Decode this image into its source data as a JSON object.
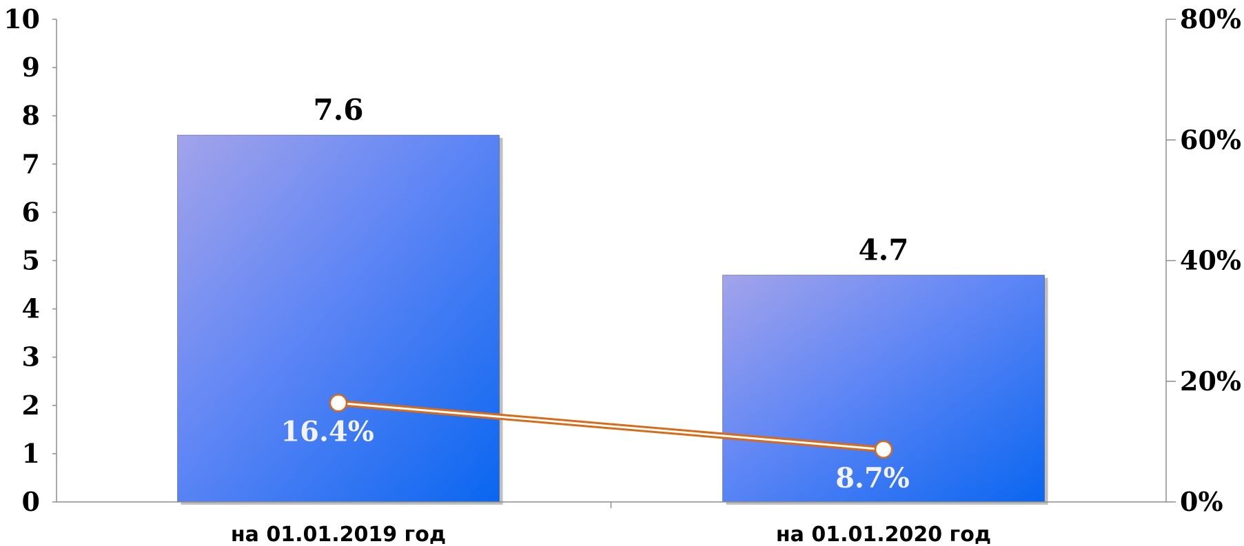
{
  "chart_data": {
    "type": "bar",
    "categories": [
      "на 01.01.2019 год",
      "на 01.01.2020 год"
    ],
    "series": [
      {
        "type": "bar",
        "axis": "left",
        "values": [
          7.6,
          4.7
        ],
        "labels": [
          "7.6",
          "4.7"
        ]
      },
      {
        "type": "line",
        "axis": "right",
        "values": [
          16.4,
          8.7
        ],
        "labels": [
          "16.4%",
          "8.7%"
        ]
      }
    ],
    "y_left": {
      "range": [
        0,
        10
      ],
      "ticks": [
        0,
        1,
        2,
        3,
        4,
        5,
        6,
        7,
        8,
        9,
        10
      ],
      "tick_labels": [
        "0",
        "1",
        "2",
        "3",
        "4",
        "5",
        "6",
        "7",
        "8",
        "9",
        "10"
      ]
    },
    "y_right": {
      "range": [
        0,
        80
      ],
      "ticks": [
        0,
        20,
        40,
        60,
        80
      ],
      "tick_labels": [
        "0%",
        "20%",
        "40%",
        "60%",
        "80%"
      ]
    },
    "grid": false,
    "legend": "none",
    "colors": {
      "bar_light": "#a3a3ea",
      "bar_mid": "#5f86f5",
      "bar_dark": "#0a66f0",
      "bar_edge": "#2e3f70",
      "line": "#d86a18",
      "marker_fill": "#ffffff",
      "axis": "#8c8c8c"
    }
  }
}
